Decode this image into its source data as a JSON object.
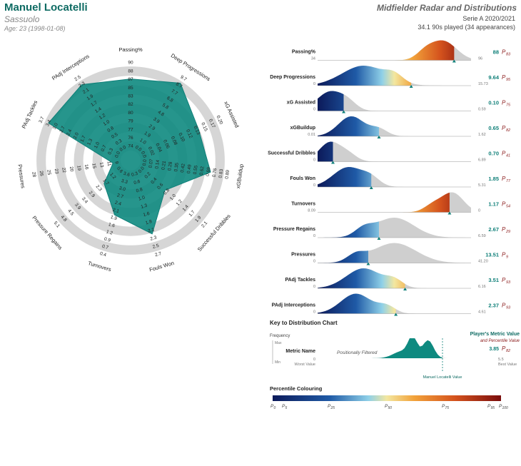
{
  "header": {
    "player": "Manuel Locatelli",
    "team": "Sassuolo",
    "age": "Age: 23 (1998-01-08)",
    "chart_title": "Midfielder Radar and Distributions",
    "season": "Serie A 2020/2021",
    "played": "34.1 90s played (34 appearances)"
  },
  "colors": {
    "accent": "#0e7f78",
    "title": "#0e6b63",
    "ring": "#d9d9d9",
    "grey_dist": "#c8c8c8",
    "radar_fill": "#5b7283"
  },
  "chart_data": [
    {
      "type": "radar",
      "metrics": [
        {
          "name": "Passing%",
          "ticks": [
            "74",
            "76",
            "77",
            "79",
            "80",
            "82",
            "83",
            "85",
            "87",
            "88",
            "90"
          ],
          "value": 88
        },
        {
          "name": "Deep Progressions",
          "ticks": [
            "0.0",
            "1.0",
            "1.9",
            "2.9",
            "3.9",
            "4.8",
            "5.8",
            "6.8",
            "7.7",
            "8.7",
            "9.7"
          ],
          "value": 9.64
        },
        {
          "name": "xG Assisted",
          "ticks": [
            "0.0",
            "0.02",
            "0.04",
            "0.06",
            "0.08",
            "0.10",
            "0.12",
            "0.13",
            "0.15",
            "0.17",
            "0.20"
          ],
          "value": 0.1
        },
        {
          "name": "xGBuildup",
          "ticks": [
            "0.0",
            "0.07",
            "0.14",
            "0.21",
            "0.28",
            "0.35",
            "0.42",
            "0.49",
            "0.55",
            "0.62",
            "0.69",
            "0.76",
            "0.83",
            "0.89"
          ],
          "value": 0.65
        },
        {
          "name": "Successful Dribbles",
          "ticks": [
            "0.0",
            "0.2",
            "0.4",
            "0.6",
            "0.8",
            "1.0",
            "1.2",
            "1.4",
            "1.7",
            "1.9",
            "2.1"
          ],
          "value": 0.7
        },
        {
          "name": "Fouls Won",
          "ticks": [
            "0.3",
            "0.6",
            "0.8",
            "1.0",
            "1.3",
            "1.6",
            "1.8",
            "2.1",
            "2.3",
            "2.5",
            "2.7"
          ],
          "value": 1.85
        },
        {
          "name": "Turnovers",
          "ticks": [
            "3.6",
            "3.3",
            "3.0",
            "2.7",
            "2.4",
            "2.1",
            "1.9",
            "1.6",
            "1.2",
            "0.9",
            "0.7",
            "0.4"
          ],
          "value": 1.17
        },
        {
          "name": "Pressure Regains",
          "ticks": [
            "0.6",
            "1.2",
            "1.7",
            "2.3",
            "2.9",
            "3.4",
            "3.9",
            "4.5",
            "4.8",
            "5.1"
          ],
          "value": 2.67
        },
        {
          "name": "Pressures",
          "ticks": [
            "9",
            "11",
            "13",
            "15",
            "16",
            "19",
            "20",
            "22",
            "23",
            "25",
            "26",
            "28"
          ],
          "value": 13.51
        },
        {
          "name": "PAdj Tackles",
          "ticks": [
            "0.0",
            "0.3",
            "0.7",
            "1.0",
            "1.3",
            "1.7",
            "2.0",
            "2.4",
            "2.7",
            "3.0",
            "3.4",
            "3.7"
          ],
          "value": 3.51
        },
        {
          "name": "PAdj Interceptions",
          "ticks": [
            "0.0",
            "0.3",
            "0.5",
            "0.8",
            "1.0",
            "1.2",
            "1.4",
            "1.7",
            "1.9",
            "2.1",
            "2.3",
            "2.5"
          ],
          "value": 2.37
        }
      ],
      "percentile_radius": [
        0.83,
        0.95,
        0.75,
        0.82,
        0.41,
        0.77,
        0.54,
        0.29,
        0.09,
        0.93,
        0.93
      ]
    },
    {
      "type": "area",
      "rows": [
        {
          "name": "Passing%",
          "min": "34",
          "max": "96",
          "value": "88",
          "pct": "83",
          "pos": 0.89
        },
        {
          "name": "Deep Progressions",
          "min": "0",
          "max": "15.73",
          "value": "9.64",
          "pct": "95",
          "pos": 0.61
        },
        {
          "name": "xG Assisted",
          "min": "0",
          "max": "0.59",
          "value": "0.10",
          "pct": "75",
          "pos": 0.17
        },
        {
          "name": "xGBuildup",
          "min": "0.01",
          "max": "1.62",
          "value": "0.65",
          "pct": "82",
          "pos": 0.4
        },
        {
          "name": "Successful Dribbles",
          "min": "0",
          "max": "6.89",
          "value": "0.70",
          "pct": "41",
          "pos": 0.1
        },
        {
          "name": "Fouls Won",
          "min": "0",
          "max": "5.31",
          "value": "1.85",
          "pct": "77",
          "pos": 0.35
        },
        {
          "name": "Turnovers",
          "min": "8.09",
          "max": "0",
          "value": "1.17",
          "pct": "54",
          "pos": 0.86
        },
        {
          "name": "Pressure Regains",
          "min": "0",
          "max": "6.59",
          "value": "2.67",
          "pct": "29",
          "pos": 0.4
        },
        {
          "name": "Pressures",
          "min": "0",
          "max": "41.20",
          "value": "13.51",
          "pct": "9",
          "pos": 0.33
        },
        {
          "name": "PAdj Tackles",
          "min": "0",
          "max": "6.16",
          "value": "3.51",
          "pct": "93",
          "pos": 0.57
        },
        {
          "name": "PAdj Interceptions",
          "min": "0",
          "max": "4.61",
          "value": "2.37",
          "pct": "93",
          "pos": 0.51
        }
      ]
    }
  ],
  "key": {
    "title": "Key to Distribution Chart",
    "frequency": "Frequency",
    "max": "Max",
    "min": "Min",
    "metric_name": "Metric Name",
    "filtered": "Positionally Filtered",
    "worst": "Worst Value",
    "best": "Best Value",
    "zero": "0",
    "best_num": "5.5",
    "player_value_label": "Player's Metric Value",
    "percentile_value_label": "and Percentile Value",
    "sample_value": "3.85",
    "sample_pct": "82",
    "marker_label": "Manuel Locatelli Value"
  },
  "legend": {
    "title": "Percentile Colouring",
    "ticks": [
      "0",
      "5",
      "25",
      "50",
      "75",
      "95",
      "100"
    ]
  }
}
